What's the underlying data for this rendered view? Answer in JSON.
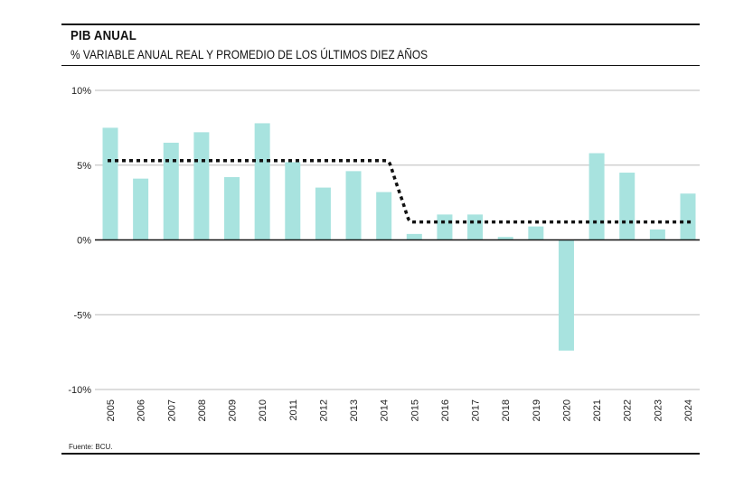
{
  "header": {
    "title": "PIB ANUAL",
    "subtitle": "% VARIABLE ANUAL REAL Y PROMEDIO DE LOS ÚLTIMOS DIEZ AÑOS"
  },
  "footer": {
    "source": "Fuente: BCU."
  },
  "colors": {
    "bar": "#a8e3df",
    "average_line": "#111111",
    "grid": "#bbbbbb",
    "zero_line": "#111111"
  },
  "chart_data": {
    "type": "bar",
    "categories": [
      "2005",
      "2006",
      "2007",
      "2008",
      "2009",
      "2010",
      "2011",
      "2012",
      "2013",
      "2014",
      "2015",
      "2016",
      "2017",
      "2018",
      "2019",
      "2020",
      "2021",
      "2022",
      "2023",
      "2024"
    ],
    "series": [
      {
        "type": "bar",
        "values": [
          7.5,
          4.1,
          6.5,
          7.2,
          4.2,
          7.8,
          5.2,
          3.5,
          4.6,
          3.2,
          0.4,
          1.7,
          1.7,
          0.2,
          0.9,
          -7.4,
          5.8,
          4.5,
          0.7,
          3.1
        ]
      },
      {
        "type": "line",
        "style": "dotted",
        "values": [
          5.3,
          5.3,
          5.3,
          5.3,
          5.3,
          5.3,
          5.3,
          5.3,
          5.3,
          5.3,
          1.2,
          1.2,
          1.2,
          1.2,
          1.2,
          1.2,
          1.2,
          1.2,
          1.2,
          1.2
        ]
      }
    ],
    "y_ticks": [
      "10%",
      "5%",
      "0%",
      "-5%",
      "-10%"
    ],
    "y_tick_values": [
      10,
      5,
      0,
      -5,
      -10
    ],
    "ylim": [
      -10,
      10
    ],
    "grid": true,
    "legend": "none"
  }
}
